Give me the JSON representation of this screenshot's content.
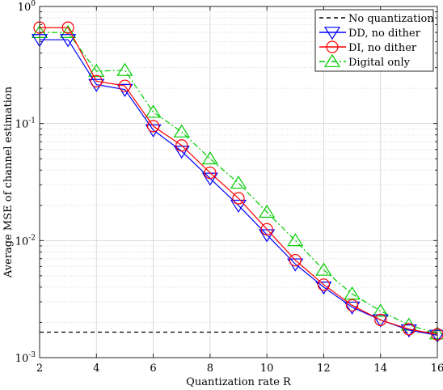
{
  "chart_data": {
    "type": "line",
    "xlabel": "Quantization rate R",
    "ylabel": "Average MSE of channel estimation",
    "xlim": [
      2,
      16
    ],
    "ylim": [
      0.001,
      1
    ],
    "yscale": "log",
    "grid": true,
    "legend_position": "top-right",
    "x_ticks": [
      2,
      4,
      6,
      8,
      10,
      12,
      14,
      16
    ],
    "y_ticks": [
      {
        "value": 1,
        "base": "10",
        "exp": "0"
      },
      {
        "value": 0.1,
        "base": "10",
        "exp": "-1"
      },
      {
        "value": 0.01,
        "base": "10",
        "exp": "-2"
      },
      {
        "value": 0.001,
        "base": "10",
        "exp": "-3"
      }
    ],
    "series": [
      {
        "name": "No quantization",
        "color": "#000000",
        "line": "dashed",
        "marker": "none",
        "x": [
          2,
          16
        ],
        "y": [
          0.00165,
          0.00165
        ]
      },
      {
        "name": "DD, no dither",
        "color": "#0000ff",
        "line": "solid",
        "marker": "triangle-down",
        "x": [
          2,
          3,
          4,
          5,
          6,
          7,
          8,
          9,
          10,
          11,
          12,
          13,
          14,
          15,
          16
        ],
        "y": [
          0.52,
          0.52,
          0.215,
          0.195,
          0.088,
          0.058,
          0.034,
          0.02,
          0.0112,
          0.0063,
          0.004,
          0.0027,
          0.0021,
          0.00172,
          0.00155
        ]
      },
      {
        "name": "DI, no dither",
        "color": "#ff0000",
        "line": "solid",
        "marker": "circle",
        "x": [
          2,
          3,
          4,
          5,
          6,
          7,
          8,
          9,
          10,
          11,
          12,
          13,
          14,
          15,
          16
        ],
        "y": [
          0.66,
          0.66,
          0.23,
          0.21,
          0.095,
          0.065,
          0.038,
          0.023,
          0.0125,
          0.0068,
          0.0042,
          0.0028,
          0.0021,
          0.00175,
          0.00158
        ]
      },
      {
        "name": "Digital only",
        "color": "#00cc00",
        "line": "dashdot",
        "marker": "triangle-up",
        "x": [
          2,
          3,
          4,
          5,
          6,
          7,
          8,
          9,
          10,
          11,
          12,
          13,
          14,
          15,
          16
        ],
        "y": [
          0.6,
          0.6,
          0.28,
          0.285,
          0.125,
          0.085,
          0.05,
          0.031,
          0.0175,
          0.01,
          0.0056,
          0.0035,
          0.0025,
          0.0019,
          0.0016
        ]
      }
    ]
  }
}
